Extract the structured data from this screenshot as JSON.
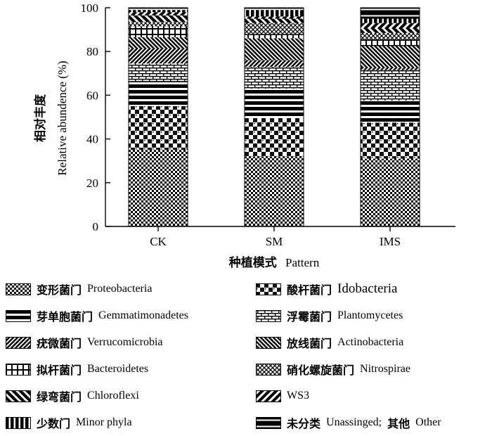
{
  "chart_data": {
    "type": "stacked_bar",
    "y_axis": {
      "title_zh": "相对丰度",
      "title_en": "Relative abundence (%)",
      "range": [
        0,
        100
      ],
      "ticks": [
        "0",
        "20",
        "40",
        "60",
        "80",
        "100"
      ]
    },
    "x_axis": {
      "title_zh": "种植模式",
      "title_en": "Pattern"
    },
    "categories": [
      "CK",
      "SM",
      "IMS"
    ],
    "series": [
      {
        "key": "proteobacteria",
        "name_zh": "变形菌门",
        "name_en": "Proteobacteria",
        "pattern": "pat-check",
        "values": [
          35,
          32,
          31
        ]
      },
      {
        "key": "acidobacteria",
        "name_zh": "酸杆菌门",
        "name_en": "Idobacteria",
        "pattern": "pat-bigcheck",
        "values": [
          20,
          17.5,
          16.5
        ]
      },
      {
        "key": "gemmatimonadetes",
        "name_zh": "芽单胞菌门",
        "name_en": "Gemmatimonadetes",
        "pattern": "pat-hstripe",
        "values": [
          11.5,
          13.5,
          10
        ]
      },
      {
        "key": "planctomycetes",
        "name_zh": "浮霉菌门",
        "name_en": "Plantomycetes",
        "pattern": "pat-brick",
        "values": [
          8,
          10,
          14
        ]
      },
      {
        "key": "verrucomicrobia",
        "name_zh": "疣微菌门",
        "name_en": "Verrucomicrobia",
        "pattern": "pat-diag-ne",
        "values": [
          7,
          3,
          1
        ]
      },
      {
        "key": "actinobacteria",
        "name_zh": "放线菌门",
        "name_en": "Actinobacteria",
        "pattern": "pat-diag-nw",
        "values": [
          5,
          10,
          10
        ]
      },
      {
        "key": "bacteroidetes",
        "name_zh": "拟杆菌门",
        "name_en": "Bacteroidetes",
        "pattern": "pat-grid",
        "values": [
          5,
          2,
          3
        ]
      },
      {
        "key": "nitrospirae",
        "name_zh": "硝化螺旋菌门",
        "name_en": "Nitrospirae",
        "pattern": "pat-crosshatch",
        "values": [
          2,
          5,
          3
        ]
      },
      {
        "key": "chloroflexi",
        "name_zh": "绿弯菌门",
        "name_en": "Chloroflexi",
        "pattern": "pat-thick-nw",
        "values": [
          3,
          2,
          2
        ]
      },
      {
        "key": "ws3",
        "name_zh": "",
        "name_en": "WS3",
        "pattern": "pat-thick-ne",
        "values": [
          1.5,
          1,
          2.5
        ]
      },
      {
        "key": "minor",
        "name_zh": "少数门",
        "name_en": "Minor phyla",
        "pattern": "pat-vstripe",
        "values": [
          1,
          3,
          2
        ]
      },
      {
        "key": "other",
        "name_zh": "未分类",
        "name_en": "Unassinged;",
        "name_zh2": "其他",
        "name_en2": "Other",
        "pattern": "pat-hthick",
        "values": [
          1,
          1,
          5
        ]
      }
    ]
  },
  "legend_order": [
    "proteobacteria",
    "acidobacteria",
    "gemmatimonadetes",
    "planctomycetes",
    "verrucomicrobia",
    "actinobacteria",
    "bacteroidetes",
    "nitrospirae",
    "chloroflexi",
    "ws3",
    "minor",
    "other"
  ]
}
